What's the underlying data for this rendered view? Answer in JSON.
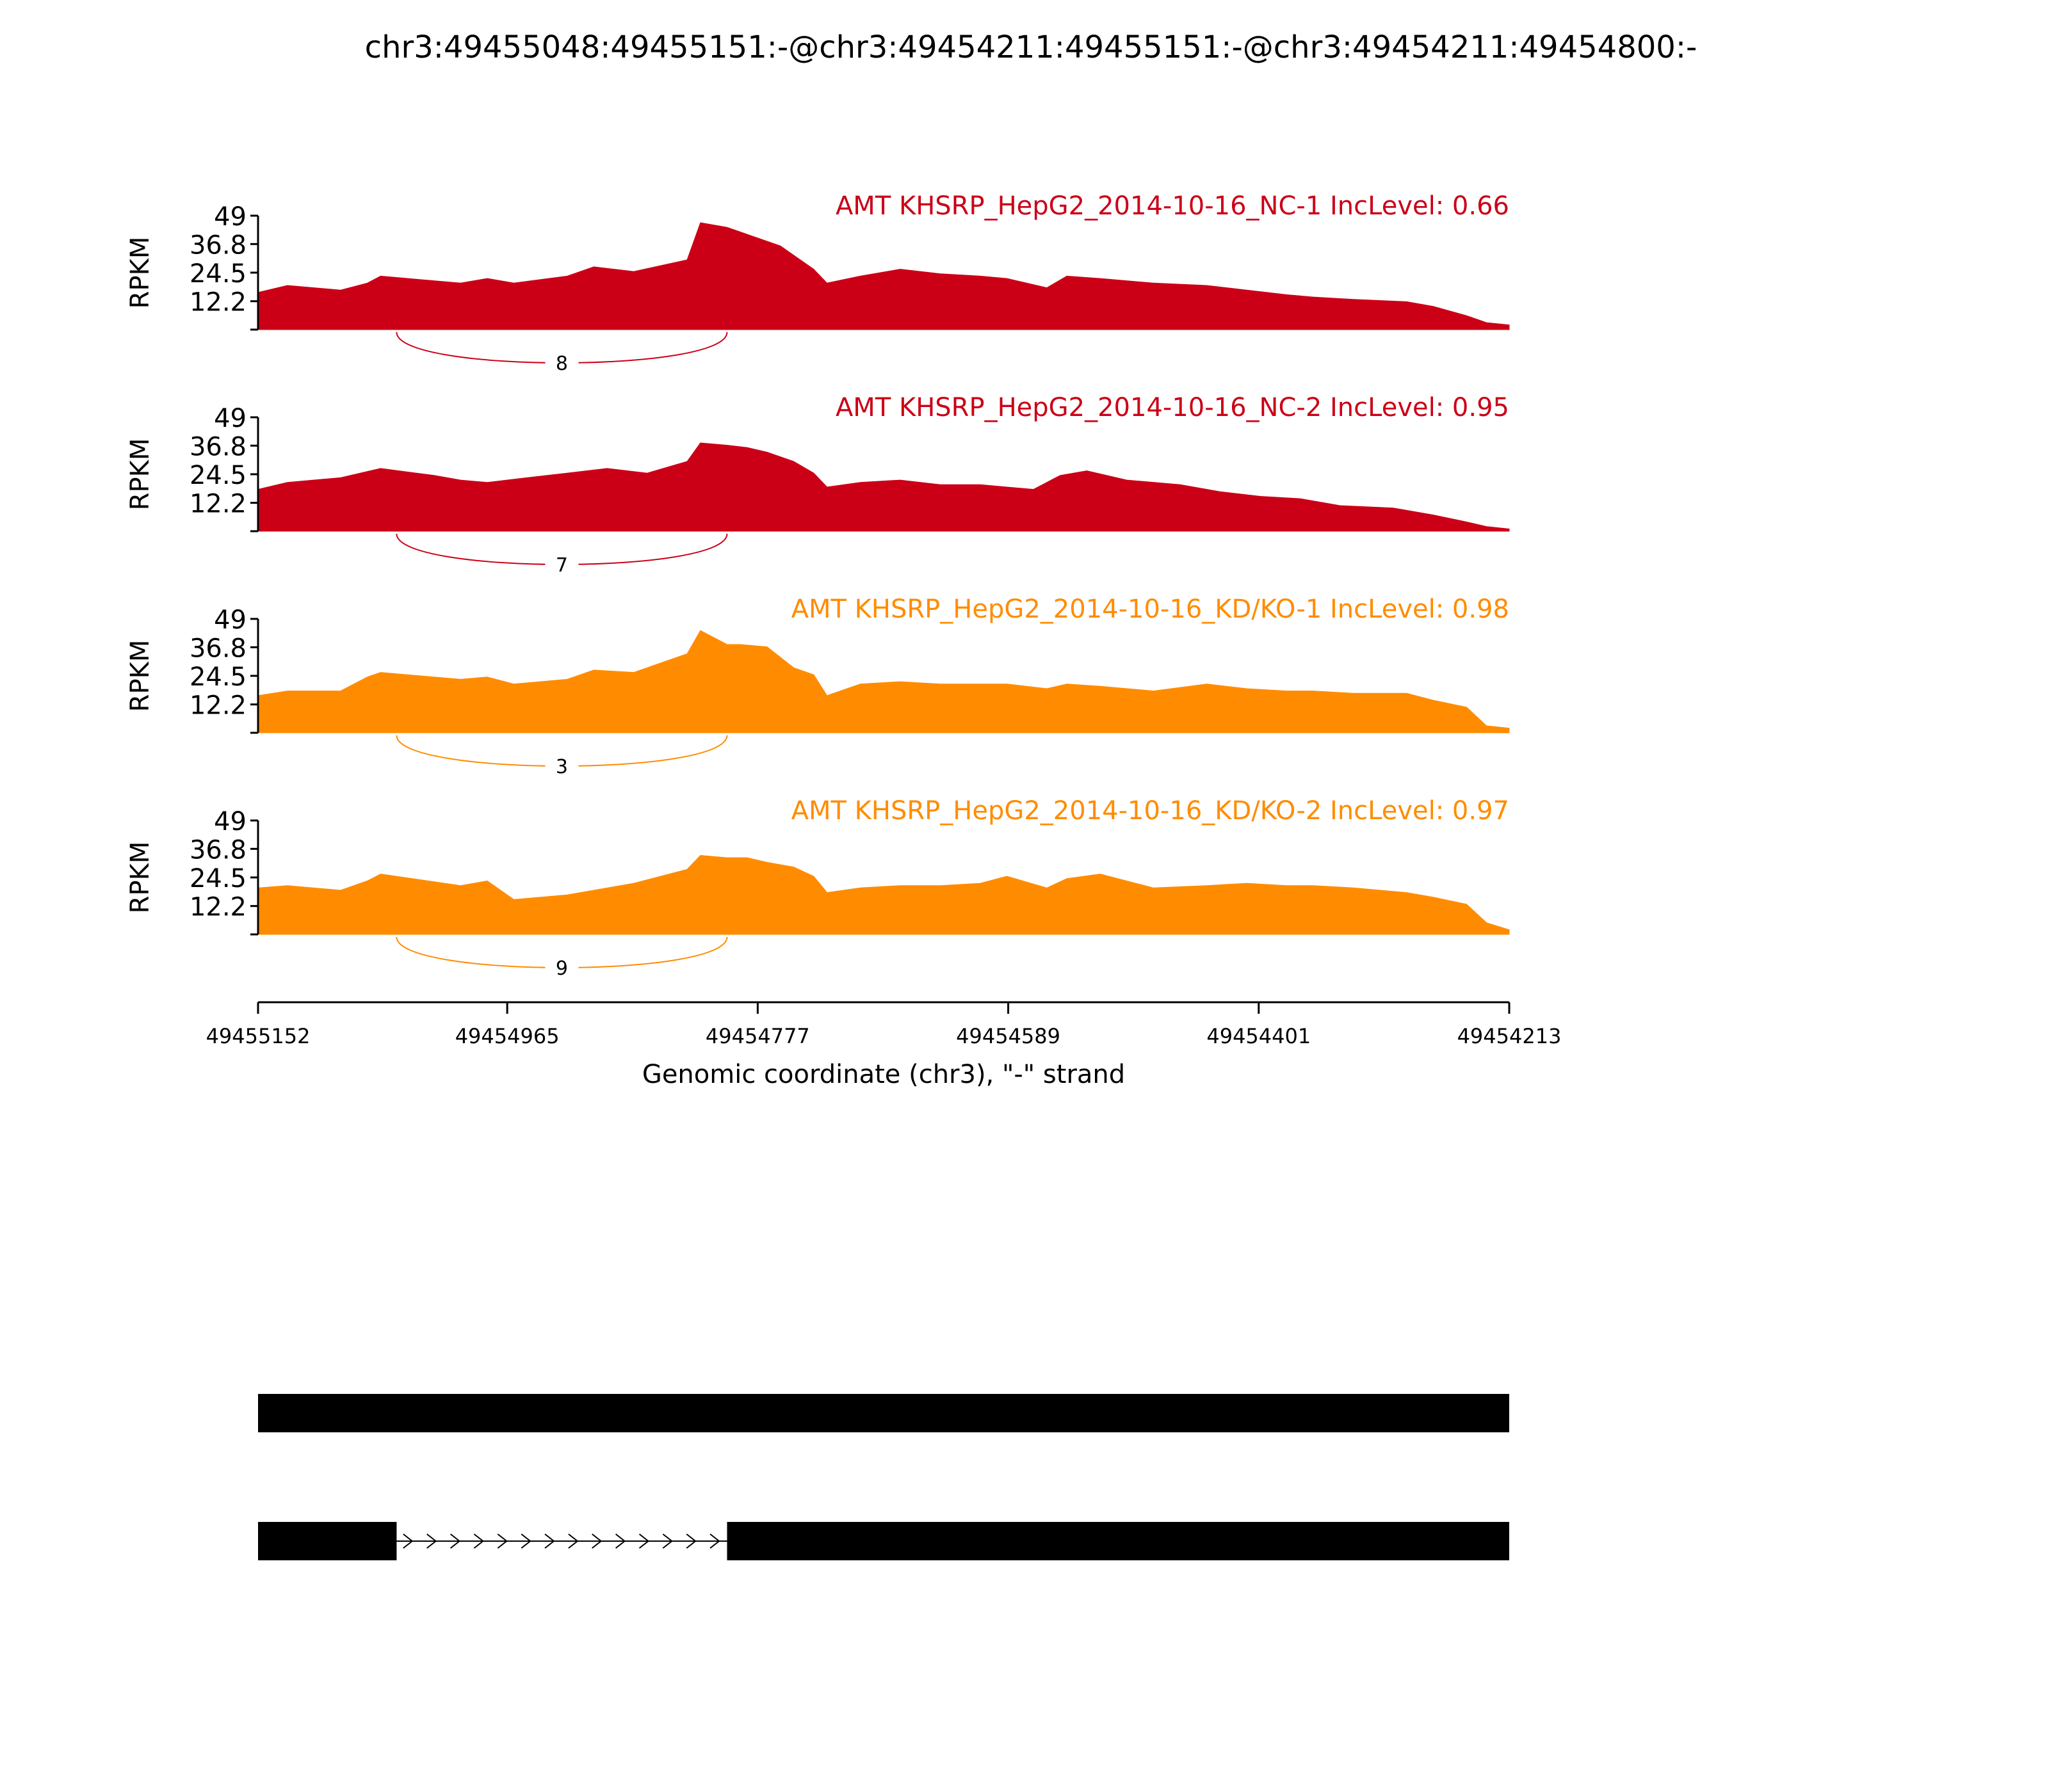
{
  "title": "chr3:49455048:49455151:-@chr3:49454211:49455151:-@chr3:49454211:49454800:-",
  "colors": {
    "nc": "#cb0017",
    "kd": "#ff8c00",
    "axis": "#000000",
    "gene": "#000000"
  },
  "chart_data": {
    "type": "area",
    "xlabel": "Genomic coordinate (chr3), \"-\" strand",
    "x_ticks": [
      "49455152",
      "49454965",
      "49454777",
      "49454589",
      "49454401",
      "49454213"
    ],
    "xlim": [
      49455152,
      49454213
    ],
    "ylabel": "RPKM",
    "ylim": [
      0,
      49
    ],
    "y_ticks": [
      "49",
      "36.8",
      "24.5",
      "12.2"
    ],
    "tracks": [
      {
        "label": "AMT KHSRP_HepG2_2014-10-16_NC-1 IncLevel: 0.66",
        "group": "nc",
        "junction_count": "8",
        "junction": [
          49455048,
          49454800
        ],
        "coverage": {
          "x": [
            49455152,
            49455130,
            49455090,
            49455070,
            49455060,
            49455000,
            49454980,
            49454960,
            49454920,
            49454900,
            49454870,
            49454830,
            49454820,
            49454800,
            49454780,
            49454760,
            49454750,
            49454735,
            49454725,
            49454700,
            49454670,
            49454640,
            49454610,
            49454590,
            49454560,
            49454545,
            49454520,
            49454480,
            49454440,
            49454410,
            49454380,
            49454360,
            49454330,
            49454290,
            49454270,
            49454245,
            49454230,
            49454213
          ],
          "y": [
            16,
            19,
            17,
            20,
            23,
            20,
            22,
            20,
            23,
            27,
            25,
            30,
            46,
            44,
            40,
            36,
            32,
            26,
            20,
            23,
            26,
            24,
            23,
            22,
            18,
            23,
            22,
            20,
            19,
            17,
            15,
            14,
            13,
            12,
            10,
            6,
            3,
            2
          ]
        }
      },
      {
        "label": "AMT KHSRP_HepG2_2014-10-16_NC-2 IncLevel: 0.95",
        "group": "nc",
        "junction_count": "7",
        "junction": [
          49455048,
          49454800
        ],
        "coverage": {
          "x": [
            49455152,
            49455130,
            49455090,
            49455060,
            49455020,
            49455000,
            49454980,
            49454950,
            49454920,
            49454890,
            49454860,
            49454830,
            49454820,
            49454800,
            49454785,
            49454770,
            49454750,
            49454735,
            49454725,
            49454700,
            49454670,
            49454640,
            49454610,
            49454590,
            49454570,
            49454550,
            49454530,
            49454500,
            49454460,
            49454430,
            49454400,
            49454370,
            49454340,
            49454300,
            49454270,
            49454245,
            49454230,
            49454213
          ],
          "y": [
            18,
            21,
            23,
            27,
            24,
            22,
            21,
            23,
            25,
            27,
            25,
            30,
            38,
            37,
            36,
            34,
            30,
            25,
            19,
            21,
            22,
            20,
            20,
            19,
            18,
            24,
            26,
            22,
            20,
            17,
            15,
            14,
            11,
            10,
            7,
            4,
            2,
            1
          ]
        }
      },
      {
        "label": "AMT KHSRP_HepG2_2014-10-16_KD/KO-1 IncLevel: 0.98",
        "group": "kd",
        "junction_count": "3",
        "junction": [
          49455048,
          49454800
        ],
        "coverage": {
          "x": [
            49455152,
            49455130,
            49455090,
            49455070,
            49455060,
            49455000,
            49454980,
            49454960,
            49454920,
            49454900,
            49454870,
            49454830,
            49454820,
            49454800,
            49454790,
            49454770,
            49454750,
            49454735,
            49454725,
            49454700,
            49454670,
            49454640,
            49454610,
            49454590,
            49454560,
            49454545,
            49454520,
            49454480,
            49454440,
            49454410,
            49454380,
            49454360,
            49454330,
            49454290,
            49454270,
            49454245,
            49454230,
            49454213
          ],
          "y": [
            16,
            18,
            18,
            24,
            26,
            23,
            24,
            21,
            23,
            27,
            26,
            34,
            44,
            38,
            38,
            37,
            28,
            25,
            16,
            21,
            22,
            21,
            21,
            21,
            19,
            21,
            20,
            18,
            21,
            19,
            18,
            18,
            17,
            17,
            14,
            11,
            3,
            2
          ]
        }
      },
      {
        "label": "AMT KHSRP_HepG2_2014-10-16_KD/KO-2 IncLevel: 0.97",
        "group": "kd",
        "junction_count": "9",
        "junction": [
          49455048,
          49454800
        ],
        "coverage": {
          "x": [
            49455152,
            49455130,
            49455090,
            49455070,
            49455060,
            49455000,
            49454980,
            49454960,
            49454920,
            49454900,
            49454870,
            49454830,
            49454820,
            49454800,
            49454785,
            49454770,
            49454750,
            49454735,
            49454725,
            49454700,
            49454670,
            49454640,
            49454610,
            49454590,
            49454560,
            49454545,
            49454520,
            49454480,
            49454440,
            49454410,
            49454380,
            49454360,
            49454330,
            49454290,
            49454270,
            49454245,
            49454230,
            49454213
          ],
          "y": [
            20,
            21,
            19,
            23,
            26,
            21,
            23,
            15,
            17,
            19,
            22,
            28,
            34,
            33,
            33,
            31,
            29,
            25,
            18,
            20,
            21,
            21,
            22,
            25,
            20,
            24,
            26,
            20,
            21,
            22,
            21,
            21,
            20,
            18,
            16,
            13,
            5,
            2
          ]
        }
      }
    ],
    "transcripts": [
      {
        "exons": [
          [
            49455152,
            49454213
          ]
        ]
      },
      {
        "exons": [
          [
            49455152,
            49455048
          ],
          [
            49454800,
            49454213
          ]
        ],
        "intron": [
          49455048,
          49454800
        ]
      }
    ]
  }
}
